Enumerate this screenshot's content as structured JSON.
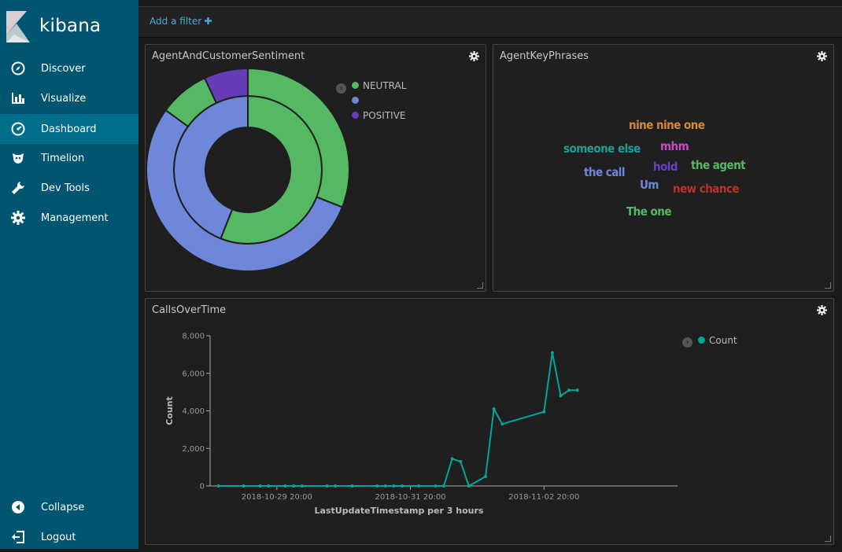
{
  "app": {
    "name": "kibana"
  },
  "sidebar": {
    "items": [
      {
        "label": "Discover",
        "icon": "compass-icon",
        "active": false
      },
      {
        "label": "Visualize",
        "icon": "bar-chart-icon",
        "active": false
      },
      {
        "label": "Dashboard",
        "icon": "dashboard-icon",
        "active": true
      },
      {
        "label": "Timelion",
        "icon": "timelion-icon",
        "active": false
      },
      {
        "label": "Dev Tools",
        "icon": "wrench-icon",
        "active": false
      },
      {
        "label": "Management",
        "icon": "gear-icon",
        "active": false
      }
    ],
    "bottom": [
      {
        "label": "Collapse",
        "icon": "collapse-icon"
      },
      {
        "label": "Logout",
        "icon": "logout-icon"
      }
    ]
  },
  "filter_bar": {
    "add_filter_label": "Add a filter",
    "add_icon": "plus-icon"
  },
  "colors": {
    "green": "#54b962",
    "blue": "#6f87d8",
    "purple": "#663db8",
    "teal": "#00a69b",
    "accent": "#4fa9d6"
  },
  "panels": {
    "sentiment": {
      "title": "AgentAndCustomerSentiment",
      "chart_data": {
        "type": "pie",
        "donut": true,
        "legend_position": "top-right",
        "legend": [
          {
            "label": "NEUTRAL",
            "color": "#54b962"
          },
          {
            "label": "",
            "color": "#6f87d8"
          },
          {
            "label": "POSITIVE",
            "color": "#663db8"
          }
        ],
        "rings": [
          {
            "name": "inner",
            "slices": [
              {
                "label": "NEUTRAL",
                "value": 56,
                "color": "#54b962"
              },
              {
                "label": "",
                "value": 44,
                "color": "#6f87d8"
              }
            ]
          },
          {
            "name": "outer",
            "slices": [
              {
                "label": "NEUTRAL",
                "value": 31,
                "color": "#54b962"
              },
              {
                "label": "",
                "value": 54,
                "color": "#6f87d8"
              },
              {
                "label": "NEUTRAL",
                "value": 8,
                "color": "#54b962"
              },
              {
                "label": "POSITIVE",
                "value": 7,
                "color": "#663db8"
              }
            ]
          }
        ]
      }
    },
    "keyphrases": {
      "title": "AgentKeyPhrases",
      "words": [
        {
          "text": "nine nine one",
          "color": "#d48a3a"
        },
        {
          "text": "someone else",
          "color": "#1f9c96"
        },
        {
          "text": "mhm",
          "color": "#c54bc5"
        },
        {
          "text": "the call",
          "color": "#6f87d8"
        },
        {
          "text": "hold",
          "color": "#6a3fc4"
        },
        {
          "text": "the agent",
          "color": "#54b962"
        },
        {
          "text": "Um",
          "color": "#6f87d8"
        },
        {
          "text": "new chance",
          "color": "#b83232"
        },
        {
          "text": "The one",
          "color": "#54b962"
        }
      ]
    },
    "calls": {
      "title": "CallsOverTime",
      "chart_data": {
        "type": "line",
        "xlabel": "LastUpdateTimestamp per 3 hours",
        "ylabel": "Count",
        "ylim": [
          0,
          8000
        ],
        "yticks": [
          0,
          2000,
          4000,
          6000,
          8000
        ],
        "ytick_labels": [
          "0",
          "2,000",
          "4,000",
          "6,000",
          "8,000"
        ],
        "xtick_labels": [
          "2018-10-29 20:00",
          "2018-10-31 20:00",
          "2018-11-02 20:00"
        ],
        "legend_position": "top-right",
        "series": [
          {
            "name": "Count",
            "color": "#00a69b",
            "x": [
              "2018-10-28 23:00",
              "2018-10-29 08:00",
              "2018-10-29 14:00",
              "2018-10-29 17:00",
              "2018-10-29 23:00",
              "2018-10-30 02:00",
              "2018-10-30 05:00",
              "2018-10-30 14:00",
              "2018-10-30 17:00",
              "2018-10-30 23:00",
              "2018-10-31 08:00",
              "2018-10-31 11:00",
              "2018-10-31 14:00",
              "2018-10-31 17:00",
              "2018-10-31 23:00",
              "2018-11-01 05:00",
              "2018-11-01 08:00",
              "2018-11-01 11:00",
              "2018-11-01 14:00",
              "2018-11-01 17:00",
              "2018-11-01 23:00",
              "2018-11-02 02:00",
              "2018-11-02 05:00",
              "2018-11-02 20:00",
              "2018-11-02 23:00",
              "2018-11-03 02:00",
              "2018-11-03 05:00",
              "2018-11-03 08:00"
            ],
            "values": [
              0,
              0,
              0,
              0,
              0,
              0,
              0,
              0,
              0,
              0,
              0,
              0,
              0,
              0,
              0,
              0,
              0,
              1450,
              1300,
              0,
              500,
              4100,
              3300,
              3950,
              7100,
              4800,
              5100,
              5100
            ]
          }
        ]
      }
    }
  }
}
